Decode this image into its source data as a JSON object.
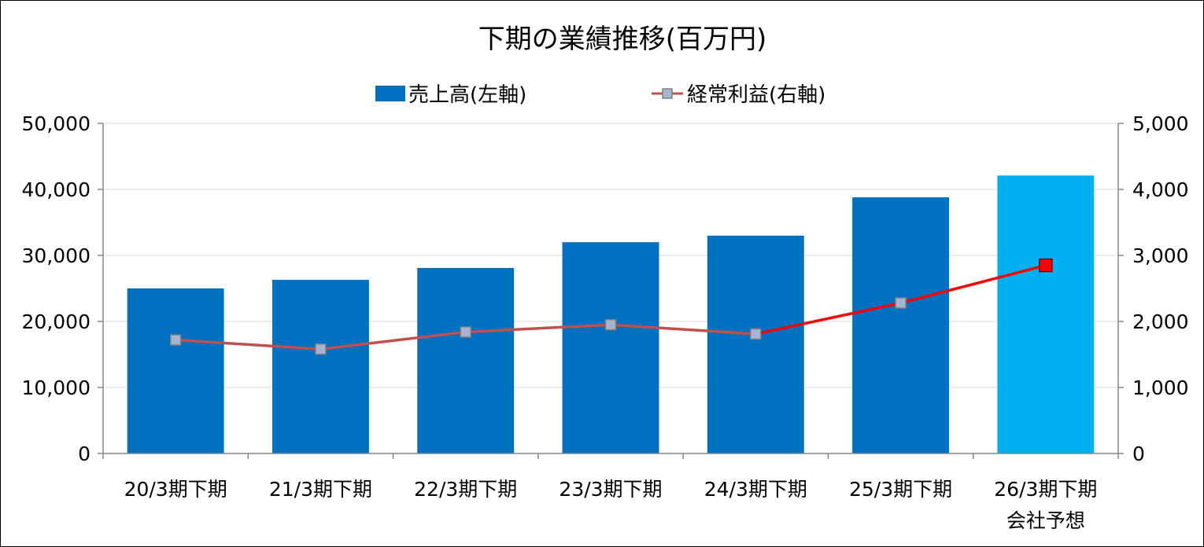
{
  "chart_data": {
    "type": "bar",
    "title": "下期の業績推移(百万円)",
    "categories": [
      "20/3期下期",
      "21/3期下期",
      "22/3期下期",
      "23/3期下期",
      "24/3期下期",
      "25/3期下期",
      "26/3期下期\n会社予想"
    ],
    "series": [
      {
        "name": "売上高(左軸)",
        "type": "bar",
        "axis": "left",
        "values": [
          25000,
          26300,
          28100,
          32000,
          33000,
          38800,
          42100
        ],
        "color": "#0070C0",
        "forecast_color": "#00B0F0"
      },
      {
        "name": "経常利益(右軸)",
        "type": "line",
        "axis": "right",
        "values": [
          1720,
          1580,
          1840,
          1950,
          1810,
          2280,
          2850
        ],
        "color": "#C0504D",
        "highlight_color": "#FF0000",
        "marker_color": "#A5B4D3"
      }
    ],
    "y_left": {
      "range": [
        0,
        50000
      ],
      "ticks": [
        "0",
        "10,000",
        "20,000",
        "30,000",
        "40,000",
        "50,000"
      ]
    },
    "y_right": {
      "range": [
        0,
        5000
      ],
      "ticks": [
        "0",
        "1,000",
        "2,000",
        "3,000",
        "4,000",
        "5,000"
      ]
    },
    "grid": true,
    "legend_position": "top"
  }
}
